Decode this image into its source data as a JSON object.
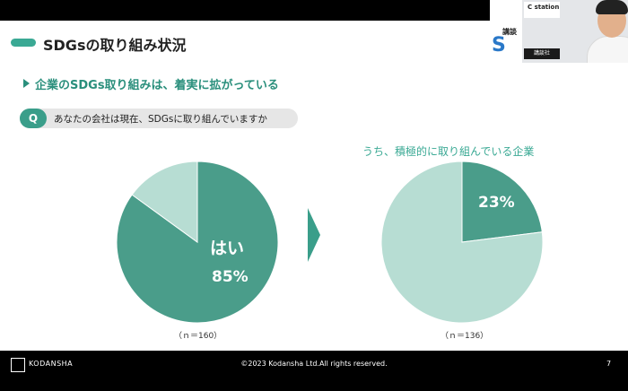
{
  "slide": {
    "title": "SDGsの取り組み状況",
    "bullet": "企業のSDGs取り組みは、着実に拡がっている",
    "question_badge": "Q",
    "question": "あなたの会社は現在、SDGsに取り組んでいますか",
    "right_heading": "うち、積極的に取り組んでいる企業"
  },
  "chart_data": [
    {
      "type": "pie",
      "slices": [
        {
          "label": "はい",
          "value": 85,
          "color": "#4a9d8a"
        },
        {
          "label": "",
          "value": 15,
          "color": "#b7ddd3"
        }
      ],
      "data_labels": [
        "はい",
        "85%"
      ],
      "sample_label": "（ｎ＝160）"
    },
    {
      "type": "pie",
      "slices": [
        {
          "label": "",
          "value": 23,
          "color": "#4a9d8a"
        },
        {
          "label": "",
          "value": 77,
          "color": "#b7ddd3"
        }
      ],
      "data_labels": [
        "23%"
      ],
      "sample_label": "（ｎ＝136）"
    }
  ],
  "webcam": {
    "logo": "C station",
    "side_text": "講談",
    "side_letter": "S",
    "name_tag": "講談社"
  },
  "footer": {
    "logo_text": "KODANSHA",
    "copyright": "©2023 Kodansha Ltd.All rights reserved.",
    "page": "7"
  }
}
